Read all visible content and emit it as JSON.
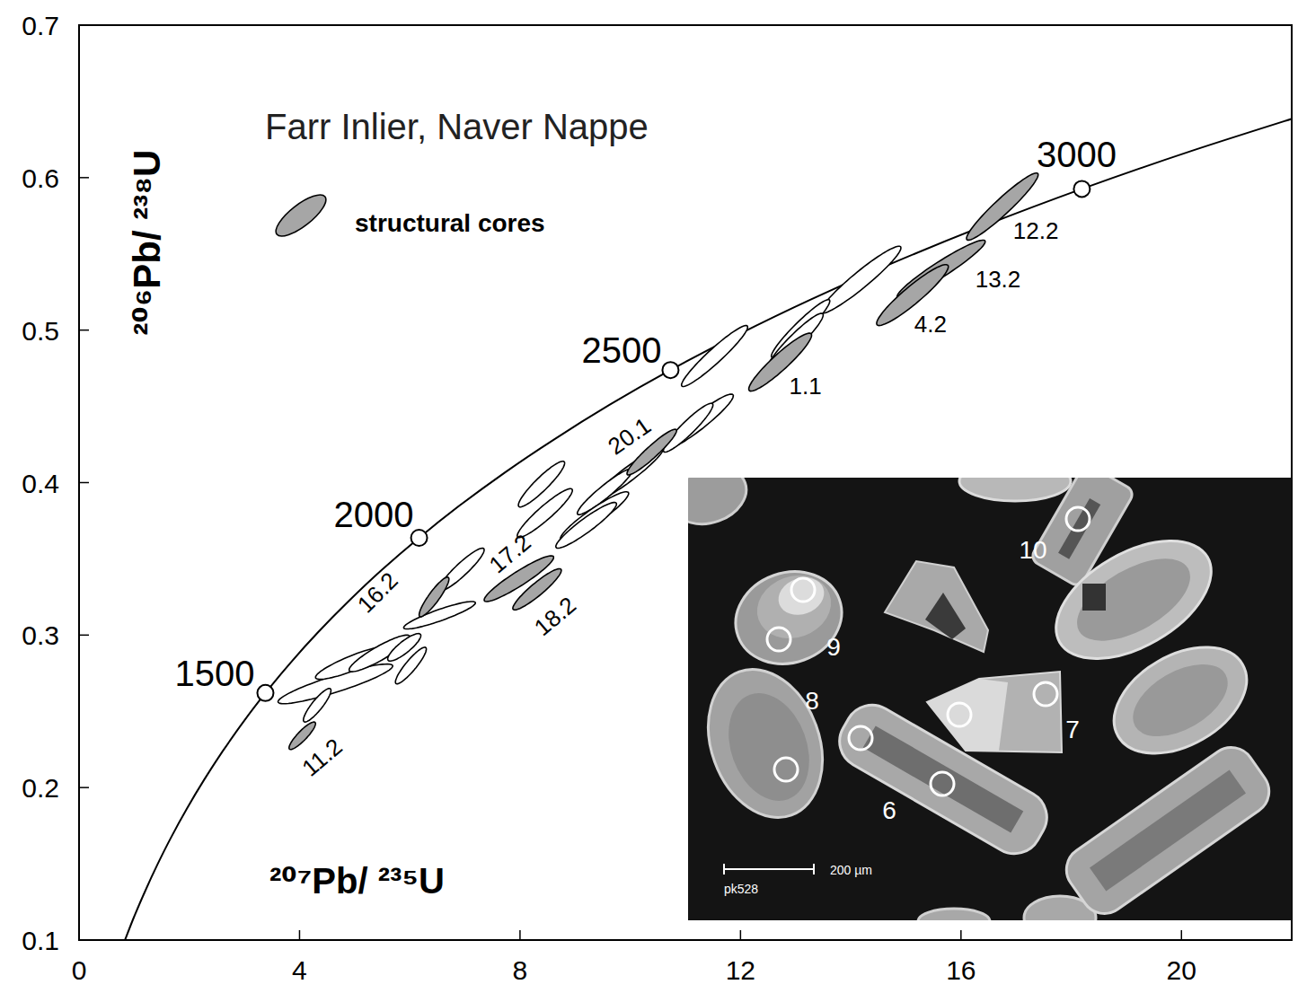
{
  "chart_data": {
    "type": "concordia",
    "title": "Farr Inlier, Naver Nappe",
    "x_label": "²⁰⁷Pb/ ²³⁵U",
    "y_label": "²⁰⁶Pb/ ²³⁸U",
    "xlim": [
      0,
      22
    ],
    "ylim": [
      0.1,
      0.7
    ],
    "xticks": [
      0,
      4,
      8,
      12,
      16,
      20
    ],
    "yticks": [
      0.1,
      0.2,
      0.3,
      0.4,
      0.5,
      0.6,
      0.7
    ],
    "legend": "top-left",
    "concordia": {
      "x": [
        0.806,
        0.993,
        1.199,
        1.426,
        1.677,
        1.955,
        2.26,
        2.598,
        2.97,
        3.381,
        3.834,
        4.335,
        4.887,
        5.496,
        6.169,
        6.91,
        7.729,
        8.633,
        9.63,
        10.73,
        11.944,
        13.283,
        14.762,
        16.393,
        18.193,
        20.18,
        22.372
      ],
      "y": [
        0.0975,
        0.1147,
        0.1321,
        0.1498,
        0.1678,
        0.1861,
        0.2046,
        0.2234,
        0.2426,
        0.262,
        0.2817,
        0.3018,
        0.3221,
        0.3428,
        0.3638,
        0.3851,
        0.4067,
        0.4287,
        0.4511,
        0.4738,
        0.4968,
        0.5202,
        0.544,
        0.5681,
        0.5926,
        0.6175,
        0.6428
      ]
    },
    "age_markers": {
      "ages": [
        1500,
        2000,
        2500,
        3000
      ],
      "x": [
        3.381,
        6.169,
        10.73,
        18.193
      ],
      "y": [
        0.262,
        0.3638,
        0.4738,
        0.5926
      ]
    },
    "series": [
      {
        "name": "structural cores",
        "color": "#a6a6a6",
        "marker": "ellipse",
        "labels": [
          "12.2",
          "13.2",
          "4.2",
          "1.1",
          "20.1",
          "16.2",
          "17.2",
          "18.2",
          "11.2"
        ],
        "x": [
          16.75,
          15.64,
          15.12,
          12.72,
          10.39,
          6.44,
          7.98,
          8.31,
          4.05
        ],
        "x_err": [
          0.65,
          0.8,
          0.65,
          0.57,
          0.45,
          0.27,
          0.63,
          0.44,
          0.24
        ],
        "values": [
          0.581,
          0.54,
          0.523,
          0.479,
          0.42,
          0.325,
          0.337,
          0.33,
          0.234
        ],
        "y_err": [
          0.022,
          0.019,
          0.02,
          0.019,
          0.015,
          0.013,
          0.015,
          0.0135,
          0.009
        ],
        "rho": [
          0.95,
          0.95,
          0.93,
          0.93,
          0.94,
          0.9,
          0.93,
          0.92,
          0.88
        ]
      },
      {
        "color": "#ffffff",
        "marker": "ellipse",
        "x": [
          14.18,
          13.09,
          13.0,
          11.53,
          11.25,
          11.05,
          9.95,
          9.54,
          9.35,
          9.2,
          8.39,
          8.45,
          6.94,
          6.54,
          4.65,
          4.99,
          5.45,
          5.9,
          6.02,
          4.32
        ],
        "x_err": [
          0.73,
          0.53,
          0.5,
          0.6,
          0.62,
          0.45,
          0.65,
          0.5,
          0.62,
          0.55,
          0.42,
          0.5,
          0.41,
          0.65,
          1.04,
          0.7,
          0.55,
          0.3,
          0.28,
          0.25
        ],
        "values": [
          0.533,
          0.501,
          0.493,
          0.483,
          0.44,
          0.436,
          0.405,
          0.394,
          0.378,
          0.372,
          0.399,
          0.38,
          0.343,
          0.313,
          0.268,
          0.282,
          0.288,
          0.292,
          0.28,
          0.254
        ],
        "y_err": [
          0.022,
          0.019,
          0.018,
          0.02,
          0.018,
          0.016,
          0.018,
          0.015,
          0.016,
          0.015,
          0.015,
          0.016,
          0.014,
          0.009,
          0.013,
          0.011,
          0.012,
          0.009,
          0.012,
          0.011
        ],
        "rho": [
          0.95,
          0.95,
          0.94,
          0.95,
          0.94,
          0.93,
          0.95,
          0.94,
          0.93,
          0.93,
          0.92,
          0.93,
          0.92,
          0.9,
          0.9,
          0.88,
          0.9,
          0.85,
          0.9,
          0.88
        ]
      }
    ],
    "inset": {
      "grain_labels": [
        "10",
        "9",
        "8",
        "7",
        "6"
      ],
      "scale_bar": "200 µm",
      "sample": "pk528"
    }
  }
}
